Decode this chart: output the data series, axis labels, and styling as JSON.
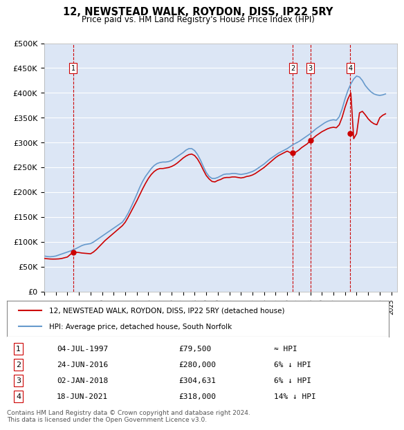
{
  "title": "12, NEWSTEAD WALK, ROYDON, DISS, IP22 5RY",
  "subtitle": "Price paid vs. HM Land Registry's House Price Index (HPI)",
  "ylabel_ticks": [
    "£0",
    "£50K",
    "£100K",
    "£150K",
    "£200K",
    "£250K",
    "£300K",
    "£350K",
    "£400K",
    "£450K",
    "£500K"
  ],
  "ytick_values": [
    0,
    50000,
    100000,
    150000,
    200000,
    250000,
    300000,
    350000,
    400000,
    450000,
    500000
  ],
  "ylim": [
    0,
    500000
  ],
  "xlim_start": 1995.0,
  "xlim_end": 2025.5,
  "background_color": "#dce6f5",
  "plot_bg_color": "#dce6f5",
  "grid_color": "#ffffff",
  "hpi_line_color": "#6699cc",
  "price_line_color": "#cc0000",
  "sale_marker_color": "#cc0000",
  "dashed_line_color": "#cc0000",
  "transactions": [
    {
      "label": "1",
      "date": "04-JUL-1997",
      "year": 1997.5,
      "price": 79500,
      "note": "≈ HPI"
    },
    {
      "label": "2",
      "date": "24-JUN-2016",
      "year": 2016.48,
      "price": 280000,
      "note": "6% ↓ HPI"
    },
    {
      "label": "3",
      "date": "02-JAN-2018",
      "year": 2018.01,
      "price": 304631,
      "note": "6% ↓ HPI"
    },
    {
      "label": "4",
      "date": "18-JUN-2021",
      "year": 2021.46,
      "price": 318000,
      "note": "14% ↓ HPI"
    }
  ],
  "legend_label_red": "12, NEWSTEAD WALK, ROYDON, DISS, IP22 5RY (detached house)",
  "legend_label_blue": "HPI: Average price, detached house, South Norfolk",
  "footer": "Contains HM Land Registry data © Crown copyright and database right 2024.\nThis data is licensed under the Open Government Licence v3.0.",
  "hpi_data_x": [
    1995.0,
    1995.25,
    1995.5,
    1995.75,
    1996.0,
    1996.25,
    1996.5,
    1996.75,
    1997.0,
    1997.25,
    1997.5,
    1997.75,
    1998.0,
    1998.25,
    1998.5,
    1998.75,
    1999.0,
    1999.25,
    1999.5,
    1999.75,
    2000.0,
    2000.25,
    2000.5,
    2000.75,
    2001.0,
    2001.25,
    2001.5,
    2001.75,
    2002.0,
    2002.25,
    2002.5,
    2002.75,
    2003.0,
    2003.25,
    2003.5,
    2003.75,
    2004.0,
    2004.25,
    2004.5,
    2004.75,
    2005.0,
    2005.25,
    2005.5,
    2005.75,
    2006.0,
    2006.25,
    2006.5,
    2006.75,
    2007.0,
    2007.25,
    2007.5,
    2007.75,
    2008.0,
    2008.25,
    2008.5,
    2008.75,
    2009.0,
    2009.25,
    2009.5,
    2009.75,
    2010.0,
    2010.25,
    2010.5,
    2010.75,
    2011.0,
    2011.25,
    2011.5,
    2011.75,
    2012.0,
    2012.25,
    2012.5,
    2012.75,
    2013.0,
    2013.25,
    2013.5,
    2013.75,
    2014.0,
    2014.25,
    2014.5,
    2014.75,
    2015.0,
    2015.25,
    2015.5,
    2015.75,
    2016.0,
    2016.25,
    2016.5,
    2016.75,
    2017.0,
    2017.25,
    2017.5,
    2017.75,
    2018.0,
    2018.25,
    2018.5,
    2018.75,
    2019.0,
    2019.25,
    2019.5,
    2019.75,
    2020.0,
    2020.25,
    2020.5,
    2020.75,
    2021.0,
    2021.25,
    2021.5,
    2021.75,
    2022.0,
    2022.25,
    2022.5,
    2022.75,
    2023.0,
    2023.25,
    2023.5,
    2023.75,
    2024.0,
    2024.25,
    2024.5
  ],
  "hpi_data_y": [
    72000,
    71000,
    70500,
    71000,
    72000,
    74000,
    76000,
    78000,
    80000,
    82000,
    84500,
    87000,
    90000,
    93000,
    95000,
    96000,
    97000,
    100000,
    104000,
    108000,
    112000,
    116000,
    120000,
    124000,
    128000,
    132000,
    136000,
    140000,
    148000,
    158000,
    170000,
    183000,
    196000,
    210000,
    222000,
    232000,
    240000,
    248000,
    254000,
    258000,
    260000,
    261000,
    261000,
    262000,
    264000,
    268000,
    272000,
    276000,
    280000,
    285000,
    288000,
    288000,
    284000,
    276000,
    265000,
    252000,
    240000,
    232000,
    228000,
    228000,
    230000,
    233000,
    236000,
    237000,
    237000,
    238000,
    238000,
    237000,
    236000,
    237000,
    238000,
    240000,
    242000,
    245000,
    249000,
    253000,
    257000,
    262000,
    267000,
    271000,
    275000,
    279000,
    282000,
    285000,
    288000,
    292000,
    296000,
    299000,
    302000,
    306000,
    310000,
    314000,
    318000,
    323000,
    328000,
    332000,
    336000,
    340000,
    343000,
    345000,
    346000,
    345000,
    352000,
    368000,
    388000,
    405000,
    418000,
    428000,
    434000,
    432000,
    425000,
    415000,
    408000,
    402000,
    398000,
    396000,
    395000,
    396000,
    398000
  ],
  "price_line_x": [
    1995.0,
    1995.25,
    1995.5,
    1995.75,
    1996.0,
    1996.25,
    1996.5,
    1996.75,
    1997.0,
    1997.25,
    1997.5,
    1997.75,
    1998.0,
    1998.25,
    1998.5,
    1998.75,
    1999.0,
    1999.25,
    1999.5,
    1999.75,
    2000.0,
    2000.25,
    2000.5,
    2000.75,
    2001.0,
    2001.25,
    2001.5,
    2001.75,
    2002.0,
    2002.25,
    2002.5,
    2002.75,
    2003.0,
    2003.25,
    2003.5,
    2003.75,
    2004.0,
    2004.25,
    2004.5,
    2004.75,
    2005.0,
    2005.25,
    2005.5,
    2005.75,
    2006.0,
    2006.25,
    2006.5,
    2006.75,
    2007.0,
    2007.25,
    2007.5,
    2007.75,
    2008.0,
    2008.25,
    2008.5,
    2008.75,
    2009.0,
    2009.25,
    2009.5,
    2009.75,
    2010.0,
    2010.25,
    2010.5,
    2010.75,
    2011.0,
    2011.25,
    2011.5,
    2011.75,
    2012.0,
    2012.25,
    2012.5,
    2012.75,
    2013.0,
    2013.25,
    2013.5,
    2013.75,
    2014.0,
    2014.25,
    2014.5,
    2014.75,
    2015.0,
    2015.25,
    2015.5,
    2015.75,
    2016.0,
    2016.25,
    2016.5,
    2016.75,
    2017.0,
    2017.25,
    2017.5,
    2017.75,
    2018.0,
    2018.25,
    2018.5,
    2018.75,
    2019.0,
    2019.25,
    2019.5,
    2019.75,
    2020.0,
    2020.25,
    2020.5,
    2020.75,
    2021.0,
    2021.25,
    2021.5,
    2021.75,
    2022.0,
    2022.25,
    2022.5,
    2022.75,
    2023.0,
    2023.25,
    2023.5,
    2023.75,
    2024.0,
    2024.25,
    2024.5
  ],
  "price_line_y": [
    67000,
    66500,
    66000,
    65800,
    65900,
    66200,
    67000,
    68500,
    70000,
    75000,
    79500,
    79500,
    79000,
    78000,
    77500,
    77000,
    76500,
    80000,
    85000,
    91000,
    97000,
    103000,
    108000,
    113000,
    118000,
    123000,
    128000,
    133000,
    140000,
    150000,
    161000,
    172000,
    183000,
    195000,
    207000,
    218000,
    228000,
    236000,
    242000,
    246000,
    248000,
    248000,
    249000,
    250000,
    252000,
    255000,
    259000,
    264000,
    269000,
    273000,
    276000,
    277000,
    274000,
    267000,
    257000,
    245000,
    234000,
    227000,
    222000,
    221000,
    224000,
    226000,
    229000,
    230000,
    230000,
    231000,
    231000,
    230000,
    229000,
    230000,
    232000,
    233000,
    235000,
    238000,
    242000,
    246000,
    250000,
    255000,
    260000,
    265000,
    270000,
    274000,
    277000,
    280000,
    283000,
    280000,
    280000,
    281000,
    285000,
    290000,
    294000,
    298000,
    304631,
    309000,
    314000,
    318000,
    322000,
    325000,
    328000,
    330000,
    331000,
    330000,
    336000,
    351000,
    371000,
    388000,
    400000,
    308000,
    318000,
    360000,
    363000,
    356000,
    348000,
    342000,
    338000,
    336000,
    350000,
    355000,
    358000
  ]
}
